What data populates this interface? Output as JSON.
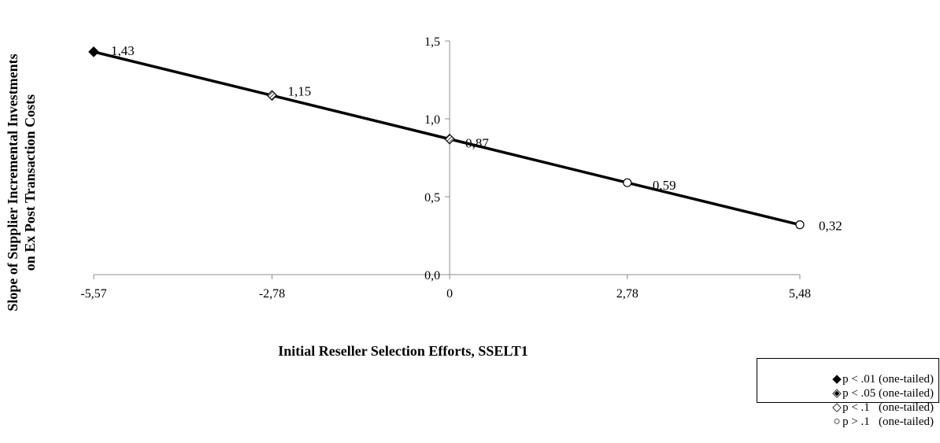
{
  "chart_data": {
    "type": "line",
    "xlabel": "Initial Reseller Selection Efforts, SSELT1",
    "ylabel_lines": [
      "Slope of Supplier Incremental  Investments",
      "on Ex Post Transaction  Costs"
    ],
    "x_ticks": [
      "-5,57",
      "-2,78",
      "0",
      "2,78",
      "5,48"
    ],
    "y_ticks": [
      "0,0",
      "0,5",
      "1,0",
      "1,5"
    ],
    "xlim": [
      -5.57,
      5.48
    ],
    "ylim": [
      0,
      1.5
    ],
    "points": [
      {
        "x": -5.57,
        "y": 1.43,
        "label": "1,43",
        "marker": "filled-diamond"
      },
      {
        "x": -2.78,
        "y": 1.15,
        "label": "1,15",
        "marker": "patterned-diamond"
      },
      {
        "x": 0,
        "y": 0.87,
        "label": "0,87",
        "marker": "patterned-diamond"
      },
      {
        "x": 2.78,
        "y": 0.59,
        "label": "0,59",
        "marker": "open-circle"
      },
      {
        "x": 5.48,
        "y": 0.32,
        "label": "0,32",
        "marker": "open-circle"
      }
    ],
    "legend": [
      {
        "marker": "filled-diamond",
        "label": "p < .01 (one-tailed)"
      },
      {
        "marker": "patterned-diamond",
        "label": "p < .05 (one-tailed)"
      },
      {
        "marker": "open-diamond",
        "label": "p < .1   (one-tailed)"
      },
      {
        "marker": "open-circle",
        "label": "p > .1   (one-tailed)"
      }
    ]
  }
}
